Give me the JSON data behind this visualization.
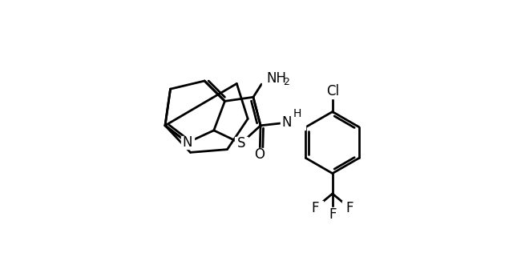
{
  "bg_color": "#ffffff",
  "line_color": "#000000",
  "lw": 2.0,
  "figsize": [
    6.4,
    3.46
  ],
  "dpi": 100,
  "xlim": [
    0,
    10
  ],
  "ylim": [
    0,
    6.8
  ]
}
